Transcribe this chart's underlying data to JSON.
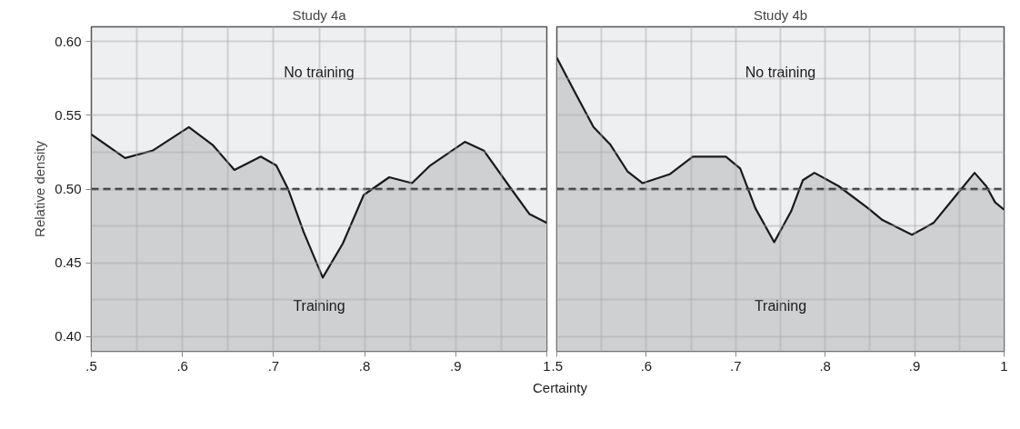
{
  "chart_data": [
    {
      "type": "area",
      "title": "Study 4a",
      "xlabel": "Certainty",
      "ylabel": "Relative density",
      "xlim": [
        0.5,
        1
      ],
      "ylim": [
        0.39,
        0.61
      ],
      "xticks": [
        {
          "value": 0.5,
          "label": ".5"
        },
        {
          "value": 0.6,
          "label": ".6"
        },
        {
          "value": 0.7,
          "label": ".7"
        },
        {
          "value": 0.8,
          "label": ".8"
        },
        {
          "value": 0.9,
          "label": ".9"
        },
        1
      ],
      "yticks": [
        {
          "value": 0.4,
          "label": "0.40"
        },
        {
          "value": 0.45,
          "label": "0.45"
        },
        {
          "value": 0.5,
          "label": "0.50"
        },
        {
          "value": 0.55,
          "label": "0.55"
        },
        {
          "value": 0.6,
          "label": "0.60"
        }
      ],
      "grid": true,
      "ref_lines": [
        {
          "axis": "y",
          "value": 0.5,
          "color": "#1a1a1a",
          "line_style": "dashed"
        }
      ],
      "annotations": [
        "No training",
        "Training"
      ],
      "series": [
        {
          "color": "#cfd0d2",
          "x": [
            0.5,
            0.537,
            0.567,
            0.607,
            0.633,
            0.657,
            0.686,
            0.703,
            0.716,
            0.733,
            0.754,
            0.776,
            0.799,
            0.827,
            0.852,
            0.872,
            0.91,
            0.931,
            0.961,
            0.981,
            1.0
          ],
          "values": [
            0.537,
            0.521,
            0.526,
            0.542,
            0.53,
            0.513,
            0.522,
            0.516,
            0.5,
            0.471,
            0.44,
            0.463,
            0.496,
            0.508,
            0.504,
            0.516,
            0.532,
            0.526,
            0.5,
            0.483,
            0.477
          ]
        }
      ]
    },
    {
      "type": "area",
      "title": "Study 4b",
      "xlim": [
        0.5,
        1
      ],
      "ylim": [
        0.39,
        0.61
      ],
      "tick_labels": "x",
      "xticks": [
        {
          "value": 0.5,
          "label": ".5"
        },
        {
          "value": 0.6,
          "label": ".6"
        },
        {
          "value": 0.7,
          "label": ".7"
        },
        {
          "value": 0.8,
          "label": ".8"
        },
        {
          "value": 0.9,
          "label": ".9"
        },
        1
      ],
      "yticks": [
        {
          "value": 0.4,
          "label": null
        },
        {
          "value": 0.45,
          "label": null
        },
        {
          "value": 0.5,
          "label": null
        },
        {
          "value": 0.55,
          "label": null
        },
        {
          "value": 0.6,
          "label": null
        }
      ],
      "grid": true,
      "ref_lines": [
        {
          "axis": "y",
          "value": 0.5,
          "color": "#1a1a1a",
          "line_style": "dashed"
        }
      ],
      "annotations": [
        "No training",
        "Training"
      ],
      "series": [
        {
          "color": "#cfd0d2",
          "x": [
            0.5,
            0.519,
            0.541,
            0.56,
            0.579,
            0.596,
            0.626,
            0.652,
            0.689,
            0.705,
            0.722,
            0.743,
            0.762,
            0.775,
            0.788,
            0.815,
            0.848,
            0.864,
            0.897,
            0.921,
            0.944,
            0.967,
            0.98,
            0.99,
            1.0
          ],
          "values": [
            0.589,
            0.567,
            0.542,
            0.53,
            0.512,
            0.504,
            0.51,
            0.522,
            0.522,
            0.514,
            0.487,
            0.464,
            0.485,
            0.506,
            0.511,
            0.502,
            0.487,
            0.479,
            0.469,
            0.477,
            0.494,
            0.511,
            0.502,
            0.491,
            0.486
          ]
        }
      ]
    }
  ]
}
